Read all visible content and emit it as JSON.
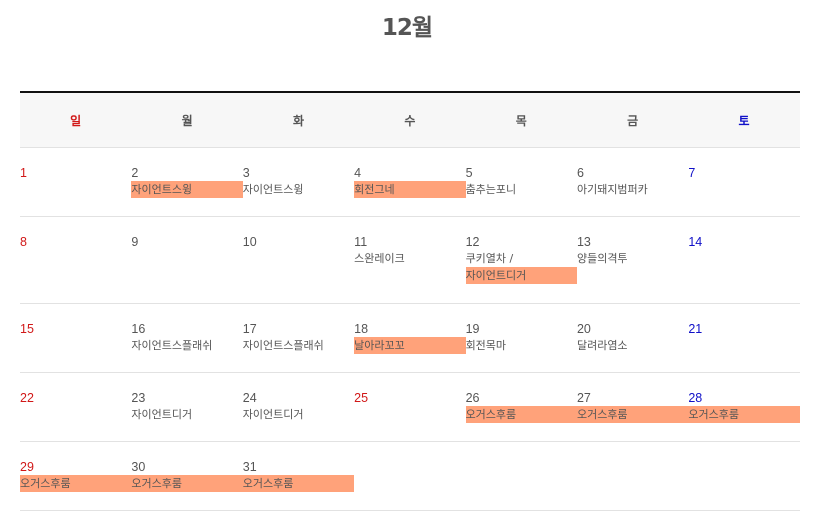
{
  "month_title": "12월",
  "weekdays": [
    "일",
    "월",
    "화",
    "수",
    "목",
    "금",
    "토"
  ],
  "weeks": [
    [
      {
        "day": "1",
        "events": []
      },
      {
        "day": "2",
        "events": [
          {
            "text": "자이언트스윙",
            "hl": true
          }
        ]
      },
      {
        "day": "3",
        "events": [
          {
            "text": "자이언트스윙",
            "hl": false
          }
        ]
      },
      {
        "day": "4",
        "events": [
          {
            "text": "회전그네",
            "hl": true
          }
        ]
      },
      {
        "day": "5",
        "events": [
          {
            "text": "춤추는포니",
            "hl": false
          }
        ]
      },
      {
        "day": "6",
        "events": [
          {
            "text": "아기돼지범퍼카",
            "hl": false
          }
        ]
      },
      {
        "day": "7",
        "events": []
      }
    ],
    [
      {
        "day": "8",
        "events": []
      },
      {
        "day": "9",
        "events": []
      },
      {
        "day": "10",
        "events": []
      },
      {
        "day": "11",
        "events": [
          {
            "text": "스완레이크",
            "hl": false
          }
        ]
      },
      {
        "day": "12",
        "events": [
          {
            "text": "쿠키열차 /",
            "hl": false
          },
          {
            "text": "자이언트디거",
            "hl": true
          }
        ]
      },
      {
        "day": "13",
        "events": [
          {
            "text": "양들의격투",
            "hl": false
          }
        ]
      },
      {
        "day": "14",
        "events": []
      }
    ],
    [
      {
        "day": "15",
        "events": []
      },
      {
        "day": "16",
        "events": [
          {
            "text": "자이언트스플래쉬",
            "hl": false
          }
        ]
      },
      {
        "day": "17",
        "events": [
          {
            "text": "자이언트스플래쉬",
            "hl": false
          }
        ]
      },
      {
        "day": "18",
        "events": [
          {
            "text": "날아라꼬꼬",
            "hl": true
          }
        ]
      },
      {
        "day": "19",
        "events": [
          {
            "text": "회전목마",
            "hl": false
          }
        ]
      },
      {
        "day": "20",
        "events": [
          {
            "text": "달려라염소",
            "hl": false
          }
        ]
      },
      {
        "day": "21",
        "events": []
      }
    ],
    [
      {
        "day": "22",
        "events": []
      },
      {
        "day": "23",
        "events": [
          {
            "text": "자이언트디거",
            "hl": false
          }
        ]
      },
      {
        "day": "24",
        "events": [
          {
            "text": "자이언트디거",
            "hl": false
          }
        ]
      },
      {
        "day": "25",
        "events": [],
        "holiday": true
      },
      {
        "day": "26",
        "events": [
          {
            "text": "오거스후룸",
            "hl": true
          }
        ]
      },
      {
        "day": "27",
        "events": [
          {
            "text": "오거스후룸",
            "hl": true
          }
        ]
      },
      {
        "day": "28",
        "events": [
          {
            "text": "오거스후룸",
            "hl": true
          }
        ]
      }
    ],
    [
      {
        "day": "29",
        "events": [
          {
            "text": "오거스후룸",
            "hl": true
          }
        ]
      },
      {
        "day": "30",
        "events": [
          {
            "text": "오거스후룸",
            "hl": true
          }
        ]
      },
      {
        "day": "31",
        "events": [
          {
            "text": "오거스후룸",
            "hl": true
          }
        ]
      },
      {
        "day": "",
        "events": []
      },
      {
        "day": "",
        "events": []
      },
      {
        "day": "",
        "events": []
      },
      {
        "day": "",
        "events": []
      }
    ]
  ],
  "colors": {
    "sunday": "#d11818",
    "saturday": "#1010c8",
    "highlight": "#ffa27a",
    "text": "#555555"
  }
}
